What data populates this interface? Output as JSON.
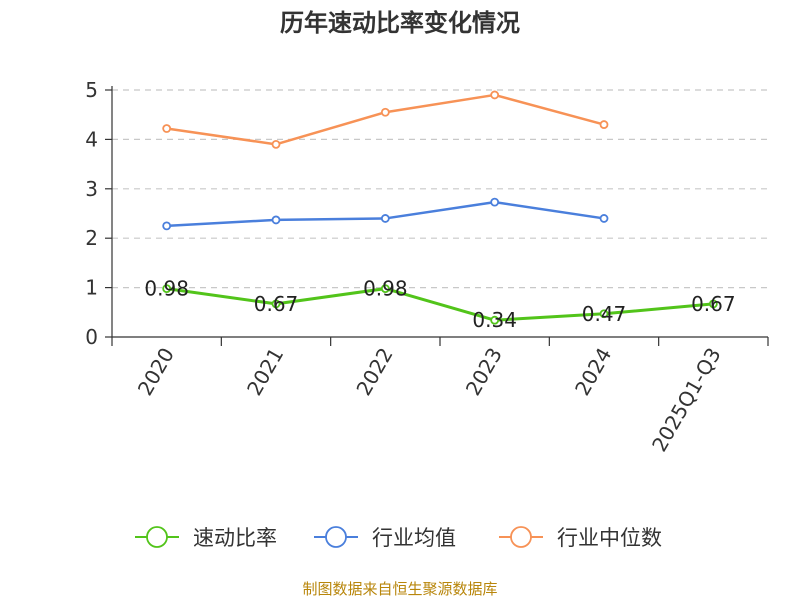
{
  "source": "制图数据来自恒生聚源数据库",
  "chart_data": {
    "type": "line",
    "title": "历年速动比率变化情况",
    "categories": [
      "2020",
      "2021",
      "2022",
      "2023",
      "2024",
      "2025Q1-Q3"
    ],
    "y_ticks": [
      "0",
      "1",
      "2",
      "3",
      "4",
      "5"
    ],
    "ylim": [
      0,
      5
    ],
    "grid": "horizontal dashed",
    "legend_position": "bottom",
    "series": [
      {
        "name": "速动比率",
        "color": "#52c41a",
        "values": [
          0.98,
          0.67,
          0.98,
          0.34,
          0.47,
          0.67
        ],
        "labels": [
          "0.98",
          "0.67",
          "0.98",
          "0.34",
          "0.47",
          "0.67"
        ]
      },
      {
        "name": "行业均值",
        "color": "#4a7fdc",
        "values": [
          2.25,
          2.37,
          2.4,
          2.73,
          2.4,
          null
        ]
      },
      {
        "name": "行业中位数",
        "color": "#f79256",
        "values": [
          4.22,
          3.9,
          4.55,
          4.9,
          4.3,
          null
        ]
      }
    ]
  }
}
